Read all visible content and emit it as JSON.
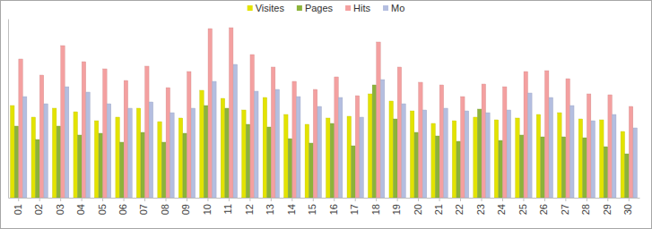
{
  "chart_data": {
    "type": "bar",
    "categories": [
      "01",
      "02",
      "03",
      "04",
      "05",
      "06",
      "07",
      "08",
      "09",
      "10",
      "11",
      "12",
      "13",
      "14",
      "15",
      "16",
      "17",
      "18",
      "19",
      "20",
      "21",
      "22",
      "23",
      "24",
      "25",
      "26",
      "27",
      "28",
      "29",
      "30"
    ],
    "series": [
      {
        "name": "Visites",
        "color": "#e3e300",
        "values": [
          103,
          90,
          100,
          96,
          86,
          90,
          100,
          85,
          89,
          120,
          111,
          98,
          112,
          93,
          82,
          89,
          91,
          116,
          108,
          97,
          83,
          86,
          90,
          87,
          89,
          93,
          95,
          88,
          87,
          74
        ]
      },
      {
        "name": "Pages",
        "color": "#8cb33a",
        "values": [
          80,
          65,
          80,
          70,
          72,
          62,
          73,
          62,
          72,
          103,
          100,
          82,
          79,
          66,
          61,
          83,
          58,
          126,
          88,
          73,
          69,
          63,
          99,
          64,
          70,
          68,
          68,
          67,
          57,
          49
        ]
      },
      {
        "name": "Hits",
        "color": "#f4a0a0",
        "values": [
          155,
          137,
          170,
          152,
          144,
          131,
          147,
          123,
          141,
          189,
          190,
          160,
          146,
          130,
          121,
          135,
          114,
          174,
          146,
          129,
          126,
          113,
          127,
          124,
          141,
          142,
          133,
          116,
          115,
          102
        ]
      },
      {
        "name": "Mo",
        "color": "#b4bee0",
        "values": [
          113,
          105,
          124,
          118,
          105,
          100,
          107,
          95,
          100,
          130,
          149,
          119,
          121,
          113,
          102,
          112,
          90,
          132,
          105,
          98,
          100,
          97,
          95,
          98,
          117,
          112,
          103,
          86,
          93,
          78
        ]
      }
    ],
    "ylim": [
      0,
      200
    ],
    "legend": "top",
    "tick_labels": "x"
  }
}
